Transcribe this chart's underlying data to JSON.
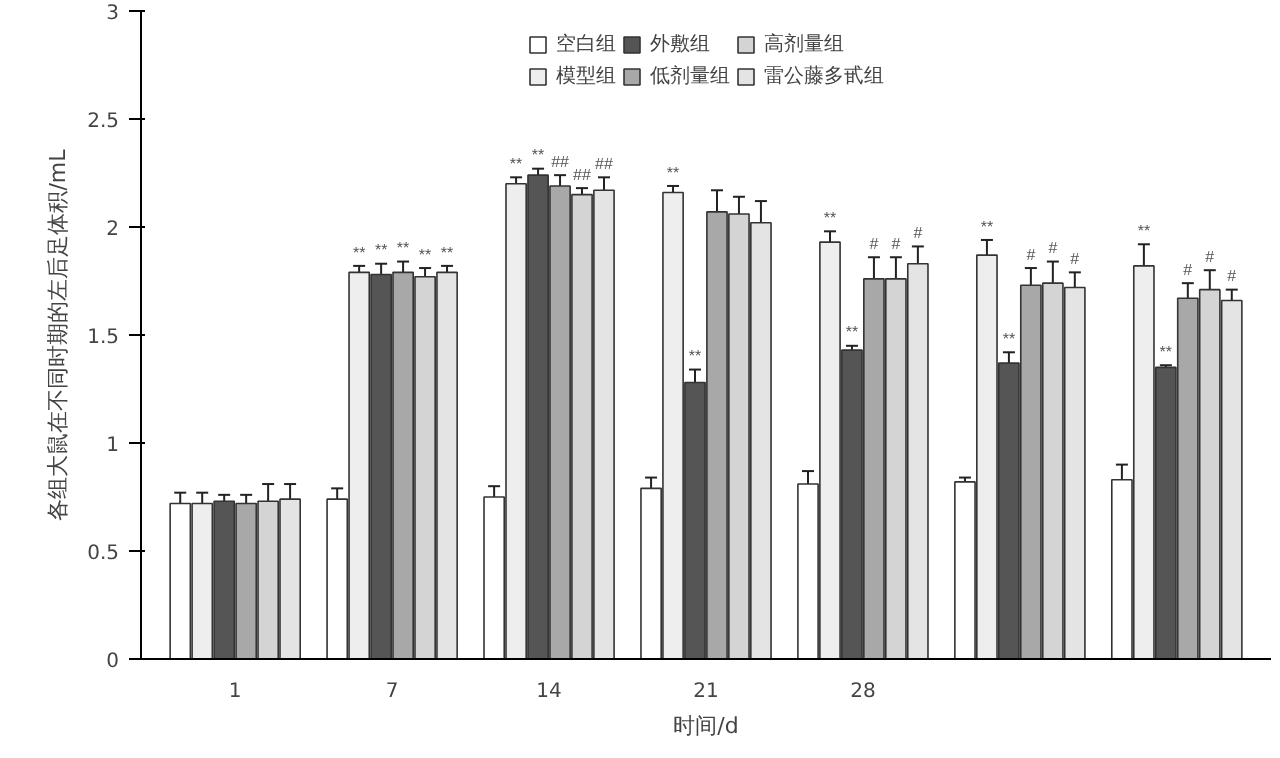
{
  "chart_data": {
    "type": "bar",
    "xlabel": "时间/d",
    "ylabel": "各组大鼠在不同时期的左后足体积/mL",
    "categories": [
      "1",
      "7",
      "14",
      "21",
      "28",
      null,
      null
    ],
    "series": [
      {
        "name": "空白组",
        "color": "#ffffff",
        "values": [
          0.72,
          0.74,
          0.75,
          0.79,
          0.81,
          0.82,
          0.83
        ],
        "errors": [
          0.05,
          0.05,
          0.05,
          0.05,
          0.06,
          0.02,
          0.07
        ],
        "value_labels": [
          null,
          null,
          null,
          null,
          null,
          null,
          null
        ]
      },
      {
        "name": "模型组",
        "color": "#eeeeee",
        "values": [
          0.72,
          1.79,
          2.2,
          2.16,
          1.93,
          1.87,
          1.82
        ],
        "errors": [
          0.05,
          0.03,
          0.03,
          0.03,
          0.05,
          0.07,
          0.1
        ],
        "value_labels": [
          null,
          "**",
          "**",
          "**",
          "**",
          "**",
          "**"
        ]
      },
      {
        "name": "外敷组",
        "color": "#555555",
        "values": [
          0.73,
          1.78,
          2.24,
          1.28,
          1.43,
          1.37,
          1.35
        ],
        "errors": [
          0.03,
          0.05,
          0.03,
          0.06,
          0.02,
          0.05,
          0.01
        ],
        "value_labels": [
          null,
          "**",
          "**",
          "**",
          "**",
          "**",
          "**"
        ]
      },
      {
        "name": "低剂量组",
        "color": "#a8a8a8",
        "values": [
          0.72,
          1.79,
          2.19,
          2.07,
          1.76,
          1.73,
          1.67
        ],
        "errors": [
          0.04,
          0.05,
          0.05,
          0.1,
          0.1,
          0.08,
          0.07
        ],
        "value_labels": [
          null,
          "**",
          "##",
          null,
          "#",
          "#",
          "#"
        ]
      },
      {
        "name": "高剂量组",
        "color": "#d4d4d4",
        "values": [
          0.73,
          1.77,
          2.15,
          2.06,
          1.76,
          1.74,
          1.71
        ],
        "errors": [
          0.08,
          0.04,
          0.03,
          0.08,
          0.1,
          0.1,
          0.09
        ],
        "value_labels": [
          null,
          "**",
          "##",
          null,
          "#",
          "#",
          "#"
        ]
      },
      {
        "name": "雷公藤多甙组",
        "color": "#e4e4e4",
        "values": [
          0.74,
          1.79,
          2.17,
          2.02,
          1.83,
          1.72,
          1.66
        ],
        "errors": [
          0.07,
          0.03,
          0.06,
          0.1,
          0.08,
          0.07,
          0.05
        ],
        "value_labels": [
          null,
          "**",
          "##",
          null,
          "#",
          "#",
          "#"
        ]
      }
    ],
    "ylim": [
      0,
      3
    ],
    "yticks": [
      0,
      0.5,
      1,
      1.5,
      2,
      2.5,
      3
    ],
    "grid": false,
    "legend": "top"
  }
}
